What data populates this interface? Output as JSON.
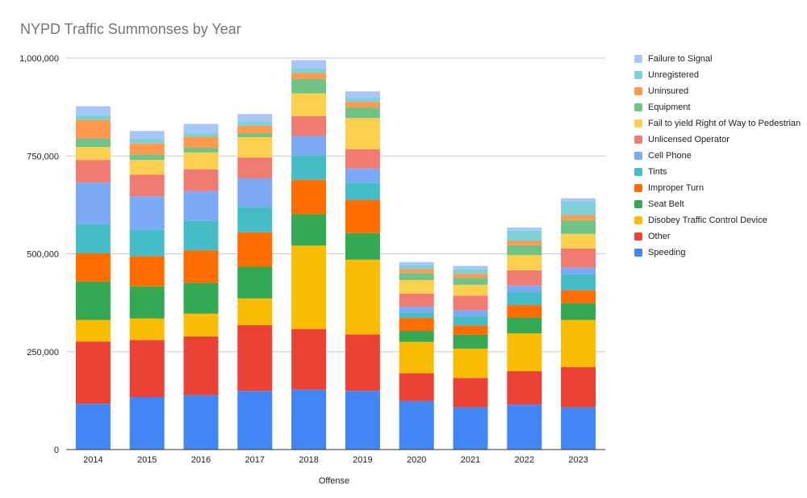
{
  "chart_data": {
    "type": "bar",
    "stacked": true,
    "title": "NYPD Traffic Summonses by Year",
    "xlabel": "Offense",
    "ylabel": "",
    "ylim": [
      0,
      1000000
    ],
    "yticks": [
      0,
      250000,
      500000,
      750000,
      1000000
    ],
    "ytick_labels": [
      "0",
      "250,000",
      "500,000",
      "750,000",
      "1,000,000"
    ],
    "grid": true,
    "legend_position": "right",
    "categories": [
      "2014",
      "2015",
      "2016",
      "2017",
      "2018",
      "2019",
      "2020",
      "2021",
      "2022",
      "2023"
    ],
    "series": [
      {
        "name": "Speeding",
        "color": "#4285F4",
        "values": [
          117000,
          134000,
          139000,
          150000,
          153000,
          150000,
          124000,
          108000,
          115000,
          108000
        ]
      },
      {
        "name": "Other",
        "color": "#EA4335",
        "values": [
          159000,
          146000,
          150000,
          168000,
          155000,
          144000,
          71000,
          75000,
          85000,
          103000
        ]
      },
      {
        "name": "Disobey Traffic Control Device",
        "color": "#FBBC04",
        "values": [
          55000,
          55000,
          58000,
          68000,
          213000,
          191000,
          80000,
          75000,
          97000,
          120000
        ]
      },
      {
        "name": "Seat Belt",
        "color": "#34A853",
        "values": [
          98000,
          82000,
          79000,
          81000,
          80000,
          68000,
          28000,
          35000,
          40000,
          43000
        ]
      },
      {
        "name": "Improper Turn",
        "color": "#FF6D01",
        "values": [
          72000,
          77000,
          83000,
          88000,
          88000,
          85000,
          33000,
          24000,
          32000,
          33000
        ]
      },
      {
        "name": "Tints",
        "color": "#46BDC6",
        "values": [
          75000,
          67000,
          76000,
          65000,
          63000,
          44000,
          14000,
          24000,
          33000,
          41000
        ]
      },
      {
        "name": "Cell Phone",
        "color": "#7BAAF7",
        "values": [
          106000,
          86000,
          75000,
          73000,
          49000,
          36000,
          15000,
          15000,
          17000,
          17000
        ]
      },
      {
        "name": "Unlicensed Operator",
        "color": "#F07B72",
        "values": [
          58000,
          55000,
          56000,
          53000,
          51000,
          49000,
          33000,
          37000,
          39000,
          49000
        ]
      },
      {
        "name": "Fail to yield Right of Way to Pedestrian",
        "color": "#FCD04F",
        "values": [
          33000,
          38000,
          43000,
          52000,
          58000,
          80000,
          35000,
          28000,
          39000,
          37000
        ]
      },
      {
        "name": "Equipment",
        "color": "#71C287",
        "values": [
          22000,
          14000,
          12000,
          10000,
          37000,
          27000,
          18000,
          18000,
          25000,
          35000
        ]
      },
      {
        "name": "Uninsured",
        "color": "#FF994D",
        "values": [
          47000,
          28000,
          28000,
          19000,
          15000,
          14000,
          10000,
          10000,
          11000,
          13000
        ]
      },
      {
        "name": "Unregistered",
        "color": "#7ED1D7",
        "values": [
          13000,
          12000,
          11000,
          10000,
          12000,
          10000,
          10000,
          12000,
          26000,
          34000
        ]
      },
      {
        "name": "Failure to Signal",
        "color": "#A7C6F9",
        "values": [
          22000,
          20000,
          22000,
          20000,
          21000,
          17000,
          8000,
          8000,
          8000,
          9000
        ]
      }
    ]
  }
}
